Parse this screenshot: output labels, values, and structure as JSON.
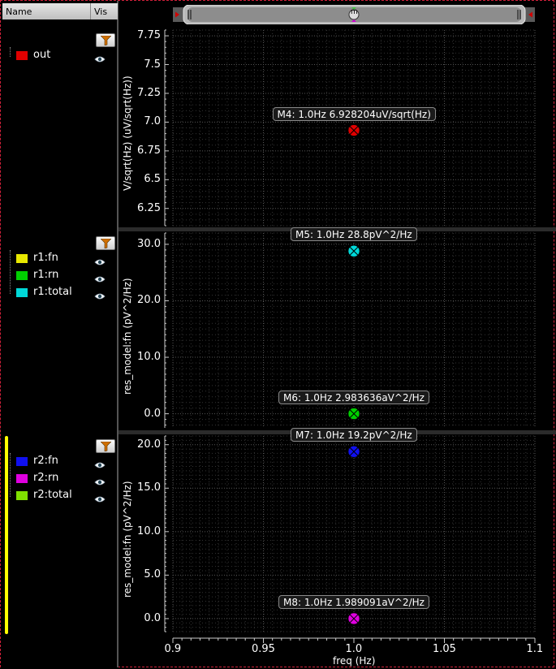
{
  "legend": {
    "header": {
      "name": "Name",
      "vis": "Vis"
    },
    "panels": [
      {
        "items": [
          {
            "label": "out",
            "color": "#e00000"
          }
        ]
      },
      {
        "items": [
          {
            "label": "r1:fn",
            "color": "#e8e800"
          },
          {
            "label": "r1:rn",
            "color": "#00d000"
          },
          {
            "label": "r1:total",
            "color": "#00d8d8"
          }
        ]
      },
      {
        "items": [
          {
            "label": "r2:fn",
            "color": "#1010f0"
          },
          {
            "label": "r2:rn",
            "color": "#e000e0"
          },
          {
            "label": "r2:total",
            "color": "#80e000"
          }
        ]
      }
    ]
  },
  "scrollbar": {
    "marker_label": "m"
  },
  "plots": [
    {
      "ylabel": "V/sqrt(Hz) (uV/sqrt(Hz))",
      "yticks": [
        "7.75",
        "7.5",
        "7.25",
        "7.0",
        "6.75",
        "6.5",
        "6.25"
      ],
      "markers": [
        {
          "label": "M4: 1.0Hz 6.928204uV/sqrt(Hz)",
          "color": "#e00000"
        }
      ]
    },
    {
      "ylabel": "res_model:fn (pV^2/Hz)",
      "yticks": [
        "30.0",
        "20.0",
        "10.0",
        "0.0"
      ],
      "markers": [
        {
          "label": "M5: 1.0Hz 28.8pV^2/Hz",
          "color": "#00d8d8"
        },
        {
          "label": "M6: 1.0Hz 2.983636aV^2/Hz",
          "color": "#00d000"
        }
      ]
    },
    {
      "ylabel": "res_model:fn (pV^2/Hz)",
      "yticks": [
        "20.0",
        "15.0",
        "10.0",
        "5.0",
        "0.0"
      ],
      "markers": [
        {
          "label": "M7: 1.0Hz 19.2pV^2/Hz",
          "color": "#1010f0"
        },
        {
          "label": "M8: 1.0Hz 1.989091aV^2/Hz",
          "color": "#e000e0"
        }
      ]
    }
  ],
  "xaxis": {
    "ticks": [
      "0.9",
      "0.95",
      "1.0",
      "1.05",
      "1.1"
    ],
    "title": "freq (Hz)"
  },
  "chart_data": [
    {
      "type": "scatter",
      "ylabel": "V/sqrt(Hz) (uV/sqrt(Hz))",
      "xlabel": "freq (Hz)",
      "xlim": [
        0.9,
        1.1
      ],
      "ylim": [
        6.1,
        7.8
      ],
      "grid": true,
      "series": [
        {
          "name": "out",
          "x": [
            1.0
          ],
          "y": [
            6.928204
          ]
        }
      ]
    },
    {
      "type": "scatter",
      "ylabel": "res_model:fn (pV^2/Hz)",
      "xlabel": "freq (Hz)",
      "xlim": [
        0.9,
        1.1
      ],
      "ylim": [
        -2.5,
        32
      ],
      "grid": true,
      "series": [
        {
          "name": "r1:total",
          "x": [
            1.0
          ],
          "y": [
            28.8
          ]
        },
        {
          "name": "r1:rn",
          "x": [
            1.0
          ],
          "y": [
            2.983636e-06
          ]
        }
      ]
    },
    {
      "type": "scatter",
      "ylabel": "res_model:fn (pV^2/Hz)",
      "xlabel": "freq (Hz)",
      "xlim": [
        0.9,
        1.1
      ],
      "ylim": [
        -1.5,
        21
      ],
      "grid": true,
      "series": [
        {
          "name": "r2:fn",
          "x": [
            1.0
          ],
          "y": [
            19.2
          ]
        },
        {
          "name": "r2:rn",
          "x": [
            1.0
          ],
          "y": [
            1.989091e-06
          ]
        }
      ]
    }
  ]
}
